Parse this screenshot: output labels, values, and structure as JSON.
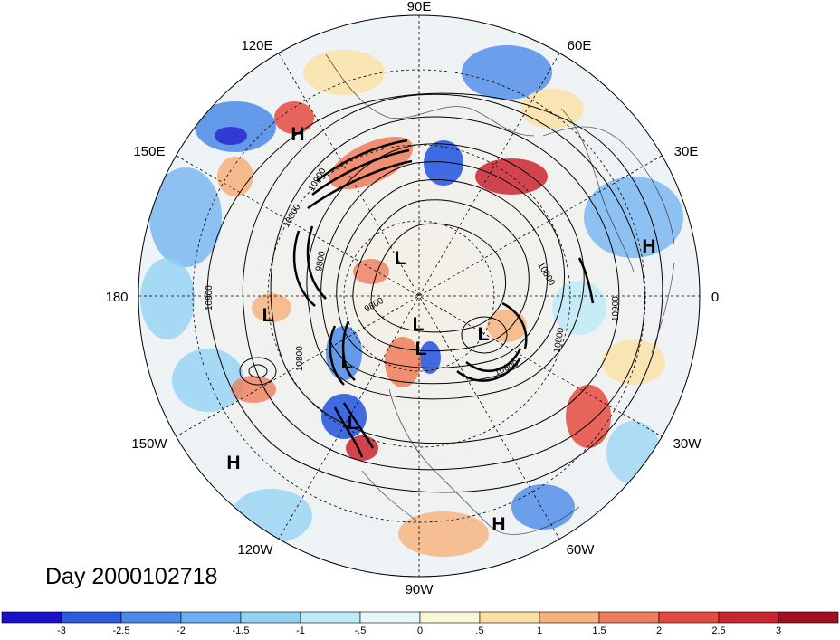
{
  "map": {
    "projection": "polar-stereographic-north",
    "longitude_labels": [
      "90E",
      "60E",
      "30E",
      "0",
      "30W",
      "60W",
      "90W",
      "120W",
      "150W",
      "180",
      "150E",
      "120E"
    ],
    "pressure_systems": [
      "H",
      "H",
      "H",
      "H",
      "L",
      "L",
      "L",
      "L",
      "L",
      "L",
      "L"
    ],
    "contour_labels": [
      "10800",
      "9800",
      "10900",
      "10900",
      "9800",
      "10800",
      "10800",
      "10900",
      "10600",
      "10800"
    ],
    "day_label": "Day 2000102718"
  },
  "colorbar": {
    "ticks": [
      "-3",
      "-2.5",
      "-2",
      "-1.5",
      "-1",
      "-.5",
      "0",
      ".5",
      "1",
      "1.5",
      "2",
      "2.5",
      "3"
    ],
    "colors": [
      "#1a12c9",
      "#2c5be0",
      "#4a8ae8",
      "#6bb0f0",
      "#92d2f4",
      "#bdeaf7",
      "#e6f7fb",
      "#fbf6d6",
      "#fbe0a4",
      "#f6b07a",
      "#ee7d5d",
      "#e44b3f",
      "#cb2630",
      "#a0101f"
    ]
  }
}
